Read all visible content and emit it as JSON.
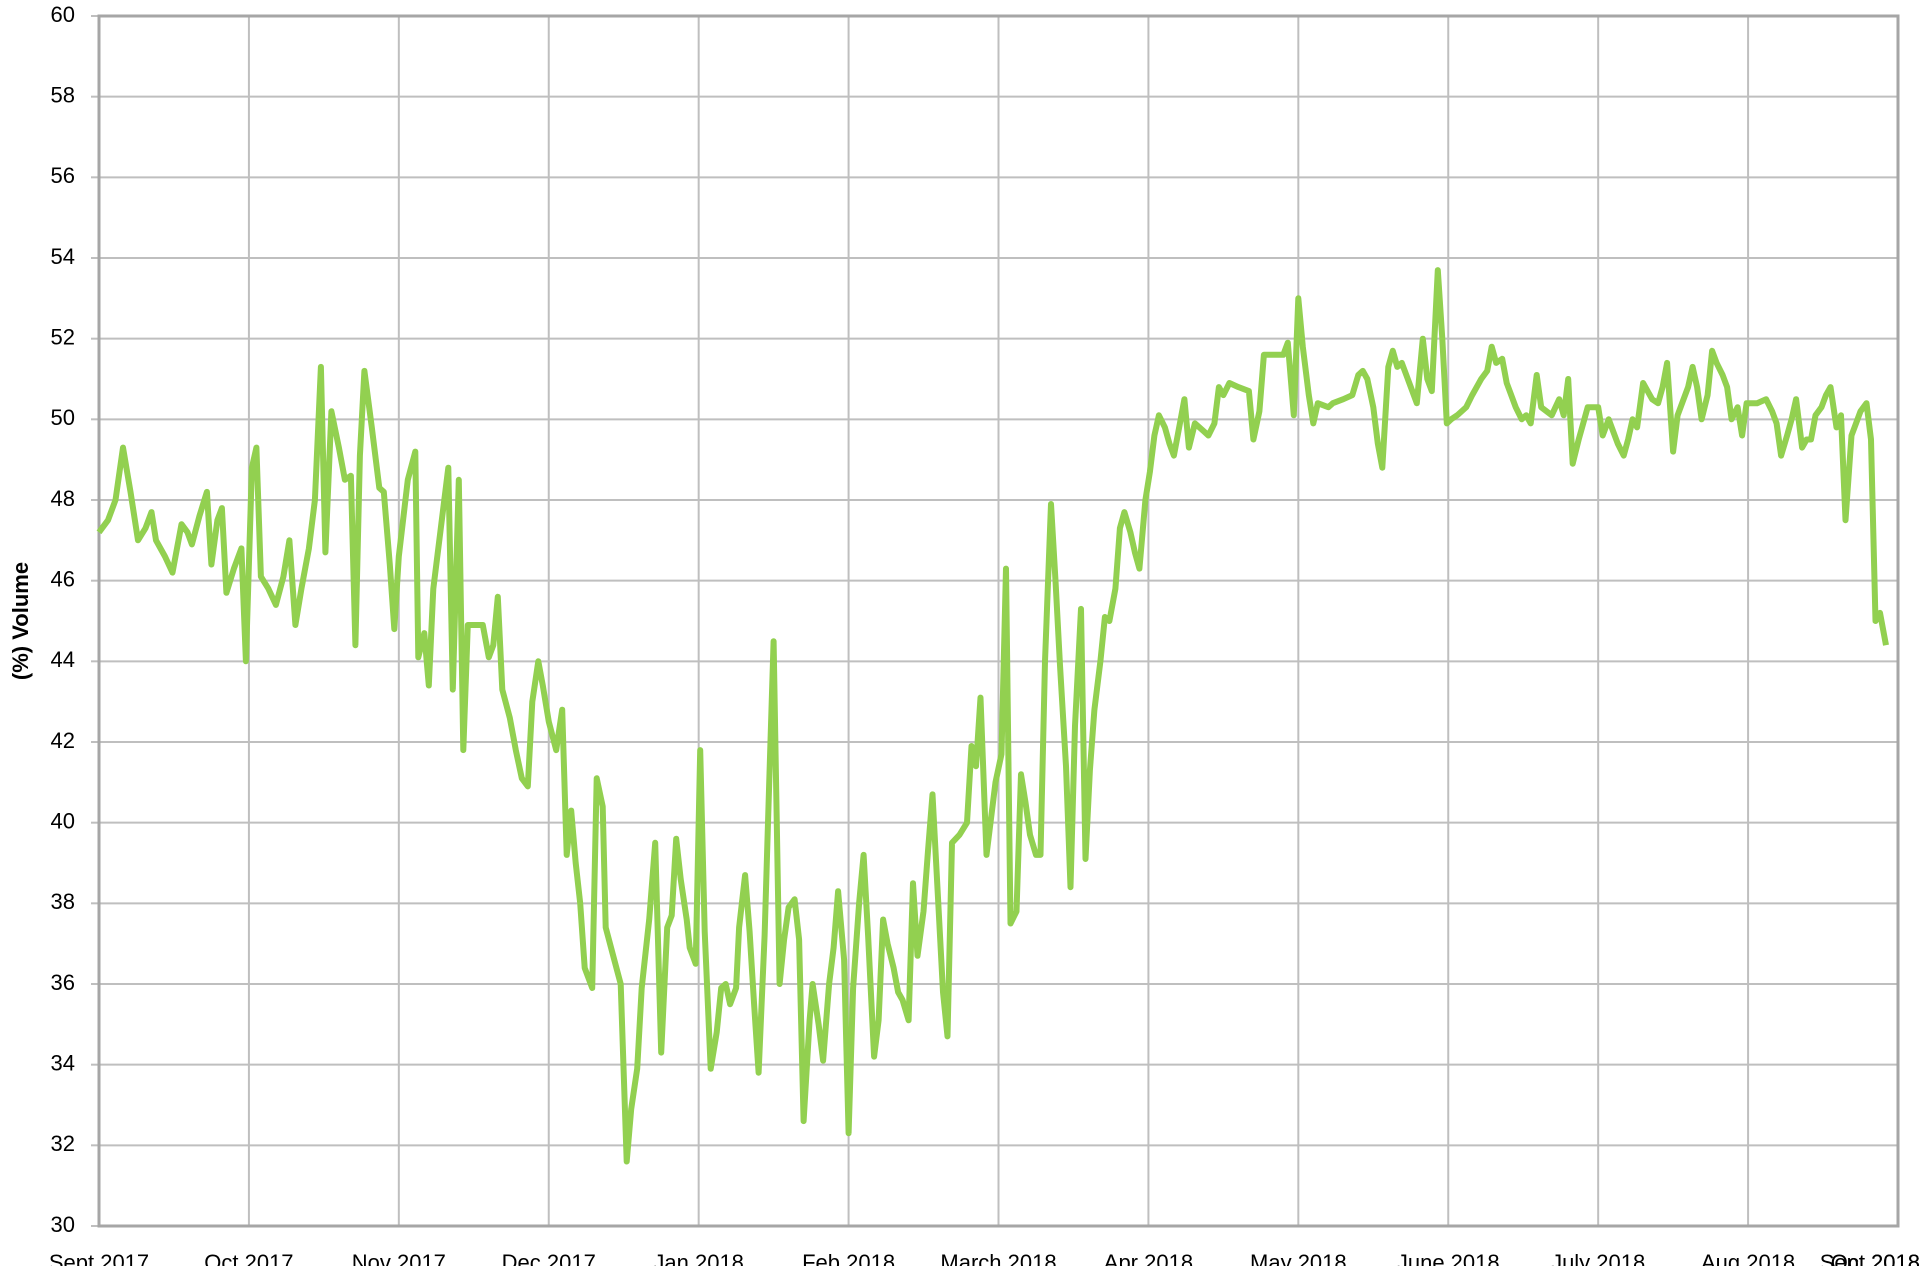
{
  "chart_data": {
    "type": "line",
    "ylabel": "(%) Volume",
    "color": "#92d050",
    "grid": true,
    "xlim": [
      0,
      12
    ],
    "xticks": [
      {
        "value": 0,
        "label": "Sept 2017"
      },
      {
        "value": 1,
        "label": "Oct 2017"
      },
      {
        "value": 2,
        "label": "Nov 2017"
      },
      {
        "value": 3,
        "label": "Dec 2017"
      },
      {
        "value": 4,
        "label": "Jan 2018"
      },
      {
        "value": 5,
        "label": "Feb 2018"
      },
      {
        "value": 6,
        "label": "March 2018"
      },
      {
        "value": 7,
        "label": "Apr 2018"
      },
      {
        "value": 8,
        "label": "May 2018"
      },
      {
        "value": 9,
        "label": "June 2018"
      },
      {
        "value": 10,
        "label": "July 2018"
      },
      {
        "value": 11,
        "label": "Aug 2018"
      },
      {
        "value": 12,
        "label": "Sept 2018"
      },
      {
        "value": 13,
        "label": "Oct 2018"
      }
    ],
    "ylim": [
      30,
      60
    ],
    "yticks": [
      30,
      32,
      34,
      36,
      38,
      40,
      42,
      44,
      46,
      48,
      50,
      52,
      54,
      56,
      58,
      60
    ],
    "x": [
      0,
      0.06,
      0.11,
      0.16,
      0.21,
      0.26,
      0.31,
      0.35,
      0.38,
      0.44,
      0.49,
      0.55,
      0.59,
      0.62,
      0.67,
      0.72,
      0.75,
      0.79,
      0.82,
      0.85,
      0.9,
      0.95,
      0.98,
      1.02,
      1.05,
      1.08,
      1.13,
      1.18,
      1.23,
      1.27,
      1.31,
      1.35,
      1.4,
      1.44,
      1.48,
      1.51,
      1.55,
      1.6,
      1.64,
      1.68,
      1.71,
      1.74,
      1.77,
      1.82,
      1.87,
      1.9,
      1.94,
      1.97,
      2.0,
      2.06,
      2.11,
      2.13,
      2.17,
      2.2,
      2.23,
      2.28,
      2.33,
      2.36,
      2.4,
      2.43,
      2.46,
      2.5,
      2.56,
      2.6,
      2.63,
      2.66,
      2.69,
      2.74,
      2.78,
      2.82,
      2.86,
      2.89,
      2.93,
      2.96,
      3.0,
      3.05,
      3.09,
      3.12,
      3.15,
      3.18,
      3.21,
      3.24,
      3.29,
      3.32,
      3.36,
      3.38,
      3.43,
      3.48,
      3.52,
      3.55,
      3.59,
      3.62,
      3.67,
      3.71,
      3.75,
      3.79,
      3.82,
      3.85,
      3.88,
      3.92,
      3.94,
      3.98,
      4.01,
      4.04,
      4.08,
      4.12,
      4.15,
      4.18,
      4.21,
      4.25,
      4.27,
      4.31,
      4.34,
      4.37,
      4.4,
      4.44,
      4.47,
      4.5,
      4.54,
      4.57,
      4.6,
      4.64,
      4.67,
      4.7,
      4.74,
      4.76,
      4.8,
      4.83,
      4.87,
      4.9,
      4.93,
      4.97,
      5.0,
      5.03,
      5.07,
      5.1,
      5.13,
      5.17,
      5.2,
      5.23,
      5.26,
      5.3,
      5.33,
      5.36,
      5.4,
      5.43,
      5.46,
      5.5,
      5.53,
      5.56,
      5.6,
      5.63,
      5.66,
      5.69,
      5.74,
      5.79,
      5.82,
      5.85,
      5.88,
      5.92,
      5.95,
      5.98,
      6.02,
      6.05,
      6.08,
      6.12,
      6.15,
      6.18,
      6.21,
      6.25,
      6.28,
      6.31,
      6.35,
      6.38,
      6.41,
      6.45,
      6.48,
      6.51,
      6.55,
      6.58,
      6.61,
      6.64,
      6.68,
      6.71,
      6.74,
      6.78,
      6.81,
      6.84,
      6.88,
      6.91,
      6.94,
      6.98,
      7.01,
      7.04,
      7.07,
      7.11,
      7.14,
      7.17,
      7.21,
      7.24,
      7.27,
      7.31,
      7.34,
      7.37,
      7.4,
      7.44,
      7.47,
      7.5,
      7.54,
      7.6,
      7.67,
      7.7,
      7.74,
      7.77,
      7.83,
      7.9,
      7.93,
      7.97,
      8.0,
      8.03,
      8.07,
      8.1,
      8.13,
      8.2,
      8.23,
      8.3,
      8.36,
      8.4,
      8.43,
      8.46,
      8.5,
      8.53,
      8.56,
      8.6,
      8.63,
      8.66,
      8.69,
      8.73,
      8.76,
      8.79,
      8.83,
      8.86,
      8.89,
      8.93,
      8.96,
      8.99,
      9.02,
      9.06,
      9.12,
      9.16,
      9.22,
      9.26,
      9.29,
      9.32,
      9.36,
      9.39,
      9.42,
      9.45,
      9.49,
      9.52,
      9.55,
      9.59,
      9.62,
      9.69,
      9.74,
      9.77,
      9.8,
      9.83,
      9.87,
      9.9,
      9.93,
      10.0,
      10.03,
      10.07,
      10.1,
      10.13,
      10.17,
      10.2,
      10.23,
      10.26,
      10.3,
      10.33,
      10.36,
      10.4,
      10.43,
      10.46,
      10.5,
      10.53,
      10.56,
      10.6,
      10.63,
      10.66,
      10.69,
      10.73,
      10.76,
      10.79,
      10.83,
      10.86,
      10.89,
      10.93,
      10.96,
      10.99,
      11.06,
      11.12,
      11.16,
      11.19,
      11.22,
      11.26,
      11.29,
      11.32,
      11.36,
      11.39,
      11.42,
      11.45,
      11.49,
      11.52,
      11.55,
      11.59,
      11.62,
      11.65,
      11.69,
      11.72,
      11.75,
      11.79,
      11.82,
      11.85,
      11.88,
      11.92
    ],
    "values": [
      47.2,
      47.5,
      48,
      49.3,
      48.2,
      47,
      47.3,
      47.7,
      47,
      46.6,
      46.2,
      47.4,
      47.2,
      46.9,
      47.6,
      48.2,
      46.4,
      47.5,
      47.8,
      45.7,
      46.3,
      46.8,
      44,
      48.8,
      49.3,
      46.1,
      45.8,
      45.4,
      46.1,
      47,
      44.9,
      45.8,
      46.8,
      48,
      51.3,
      46.7,
      50.2,
      49.3,
      48.5,
      48.6,
      44.4,
      49.1,
      51.2,
      49.8,
      48.3,
      48.2,
      46.4,
      44.8,
      46.6,
      48.5,
      49.2,
      44.1,
      44.7,
      43.4,
      45.8,
      47.3,
      48.8,
      43.3,
      48.5,
      41.8,
      44.9,
      44.9,
      44.9,
      44.1,
      44.4,
      45.6,
      43.3,
      42.6,
      41.8,
      41.1,
      40.9,
      43,
      44,
      43.4,
      42.5,
      41.8,
      42.8,
      39.2,
      40.3,
      39,
      38,
      36.4,
      35.9,
      41.1,
      40.4,
      37.4,
      36.7,
      36,
      31.6,
      32.9,
      33.9,
      35.9,
      37.6,
      39.5,
      34.3,
      37.4,
      37.7,
      39.6,
      38.6,
      37.6,
      36.9,
      36.5,
      41.8,
      37.3,
      33.9,
      34.8,
      35.9,
      36,
      35.5,
      35.9,
      37.4,
      38.7,
      37.3,
      35.5,
      33.8,
      37.2,
      40.9,
      44.5,
      36,
      37.1,
      37.9,
      38.1,
      37.1,
      32.6,
      35.1,
      36,
      35,
      34.1,
      36,
      36.9,
      38.3,
      36.6,
      32.3,
      35.9,
      38,
      39.2,
      37.2,
      34.2,
      35.1,
      37.6,
      37,
      36.4,
      35.8,
      35.6,
      35.1,
      38.5,
      36.7,
      37.8,
      39.3,
      40.7,
      37.9,
      35.8,
      34.7,
      39.5,
      39.7,
      40,
      41.9,
      41.4,
      43.1,
      39.2,
      40.1,
      41,
      41.7,
      46.3,
      37.5,
      37.8,
      41.2,
      40.5,
      39.7,
      39.2,
      39.2,
      44,
      47.9,
      46,
      43.9,
      41.4,
      38.4,
      42.4,
      45.3,
      39.1,
      41.3,
      42.8,
      44,
      45.1,
      45,
      45.8,
      47.3,
      47.7,
      47.2,
      46.7,
      46.3,
      48,
      48.7,
      49.6,
      50.1,
      49.8,
      49.4,
      49.1,
      49.9,
      50.5,
      49.3,
      49.9,
      49.8,
      49.7,
      49.6,
      49.9,
      50.8,
      50.6,
      50.9,
      50.8,
      50.7,
      49.5,
      50.2,
      51.6,
      51.6,
      51.6,
      51.9,
      50.1,
      53,
      51.8,
      50.6,
      49.9,
      50.4,
      50.3,
      50.4,
      50.5,
      50.6,
      51.1,
      51.2,
      51,
      50.3,
      49.4,
      48.8,
      51.3,
      51.7,
      51.3,
      51.4,
      51,
      50.7,
      50.4,
      52,
      51,
      50.7,
      53.7,
      52,
      49.9,
      50,
      50.1,
      50.3,
      50.6,
      51,
      51.2,
      51.8,
      51.4,
      51.5,
      50.9,
      50.6,
      50.3,
      50,
      50.1,
      49.9,
      51.1,
      50.3,
      50.1,
      50.5,
      50.1,
      51,
      48.9,
      49.5,
      49.9,
      50.3,
      50.3,
      49.6,
      50,
      49.7,
      49.4,
      49.1,
      49.5,
      50,
      49.8,
      50.9,
      50.7,
      50.5,
      50.4,
      50.8,
      51.4,
      49.2,
      50.1,
      50.4,
      50.8,
      51.3,
      50.8,
      50,
      50.6,
      51.7,
      51.4,
      51.1,
      50.8,
      50,
      50.3,
      49.6,
      50.4,
      50.4,
      50.5,
      50.2,
      49.9,
      49.1,
      49.6,
      50,
      50.5,
      49.3,
      49.5,
      49.5,
      50.1,
      50.3,
      50.6,
      50.8,
      49.8,
      50.1,
      47.5,
      49.6,
      49.9,
      50.2,
      50.4,
      49.5,
      45,
      45.2,
      44.4
    ]
  }
}
